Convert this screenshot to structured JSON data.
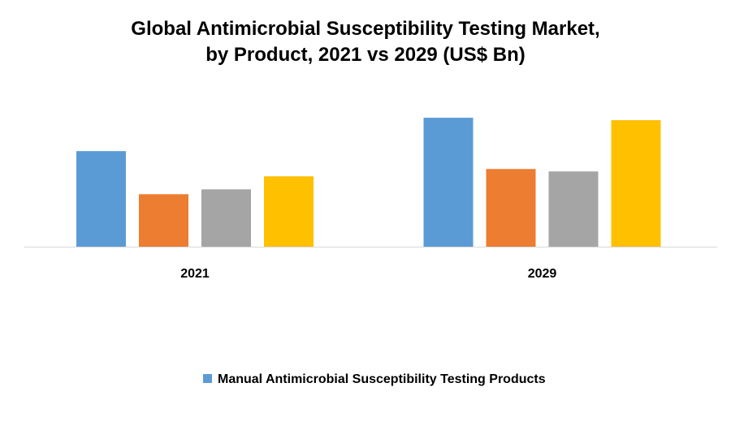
{
  "chart_data": {
    "type": "bar",
    "title_lines": [
      "Global Antimicrobial Susceptibility Testing Market,",
      "by Product, 2021 vs 2029 (US$ Bn)"
    ],
    "categories": [
      "2021",
      "2029"
    ],
    "series": [
      {
        "name": "Manual Antimicrobial Susceptibility Testing Products",
        "color": "#5B9BD5",
        "values": [
          118,
          159
        ]
      },
      {
        "color": "#ED7D31",
        "values": [
          65,
          96
        ]
      },
      {
        "color": "#A5A5A5",
        "values": [
          71,
          93
        ]
      },
      {
        "color": "#FFC000",
        "values": [
          87,
          156
        ]
      }
    ],
    "ylim": [
      0,
      200
    ],
    "grid": false,
    "legend_position": "bottom",
    "xlabel": "",
    "ylabel": ""
  }
}
